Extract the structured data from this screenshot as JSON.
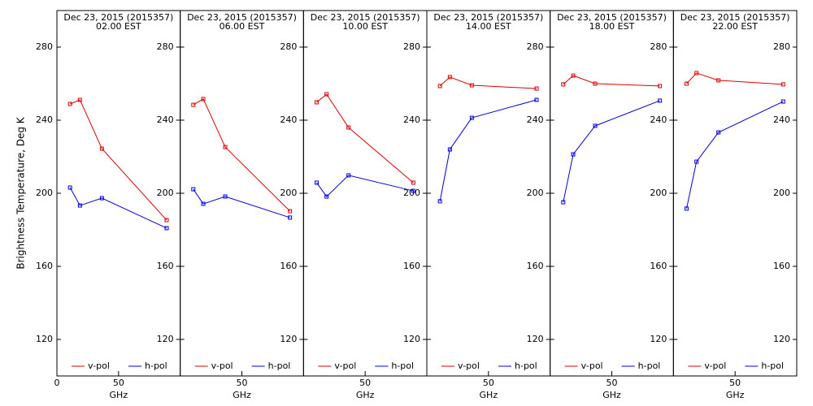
{
  "chart_data": [
    {
      "type": "line",
      "title": "Dec 23, 2015 (2015357)",
      "subtitle": "02.00 EST",
      "ylabel": "Brightness Temperature, Deg K",
      "xlabel": "GHz",
      "x": [
        10.65,
        18.7,
        36.5,
        89.0
      ],
      "series": [
        {
          "name": "v-pol",
          "color": "#e00000",
          "values": [
            248.9,
            251.1,
            224.4,
            185.3
          ]
        },
        {
          "name": "h-pol",
          "color": "#0000e0",
          "values": [
            203.1,
            193.3,
            197.3,
            180.9
          ]
        }
      ],
      "xlim": [
        0,
        100
      ],
      "xticks": [
        0,
        50
      ],
      "ylim": [
        100,
        300
      ],
      "yticks": [
        120,
        160,
        200,
        240,
        280
      ],
      "legend": "bottom"
    },
    {
      "type": "line",
      "title": "Dec 23, 2015 (2015357)",
      "subtitle": "06.00 EST",
      "xlabel": "GHz",
      "x": [
        10.65,
        18.7,
        36.5,
        89.0
      ],
      "series": [
        {
          "name": "v-pol",
          "color": "#e00000",
          "values": [
            248.4,
            251.6,
            225.3,
            190.2
          ]
        },
        {
          "name": "h-pol",
          "color": "#0000e0",
          "values": [
            202.2,
            194.2,
            198.2,
            186.7
          ]
        }
      ],
      "xlim": [
        0,
        100
      ],
      "xticks": [
        50
      ],
      "ylim": [
        100,
        300
      ],
      "yticks": [
        120,
        160,
        200,
        240,
        280
      ],
      "legend": "bottom"
    },
    {
      "type": "line",
      "title": "Dec 23, 2015 (2015357)",
      "subtitle": "10.00 EST",
      "xlabel": "GHz",
      "x": [
        10.65,
        18.7,
        36.5,
        89.0
      ],
      "series": [
        {
          "name": "v-pol",
          "color": "#e00000",
          "values": [
            249.8,
            254.2,
            236.0,
            205.8
          ]
        },
        {
          "name": "h-pol",
          "color": "#0000e0",
          "values": [
            205.8,
            198.2,
            209.8,
            201.3
          ]
        }
      ],
      "xlim": [
        0,
        100
      ],
      "xticks": [
        50
      ],
      "ylim": [
        100,
        300
      ],
      "yticks": [
        120,
        160,
        200,
        240,
        280
      ],
      "legend": "bottom"
    },
    {
      "type": "line",
      "title": "Dec 23, 2015 (2015357)",
      "subtitle": "14.00 EST",
      "xlabel": "GHz",
      "x": [
        10.65,
        18.7,
        36.5,
        89.0
      ],
      "series": [
        {
          "name": "v-pol",
          "color": "#e00000",
          "values": [
            258.7,
            263.6,
            259.1,
            257.3
          ]
        },
        {
          "name": "h-pol",
          "color": "#0000e0",
          "values": [
            195.6,
            224.0,
            241.3,
            251.1
          ]
        }
      ],
      "xlim": [
        0,
        100
      ],
      "xticks": [
        50
      ],
      "ylim": [
        100,
        300
      ],
      "yticks": [
        120,
        160,
        200,
        240,
        280
      ],
      "legend": "bottom"
    },
    {
      "type": "line",
      "title": "Dec 23, 2015 (2015357)",
      "subtitle": "18.00 EST",
      "xlabel": "GHz",
      "x": [
        10.65,
        18.7,
        36.5,
        89.0
      ],
      "series": [
        {
          "name": "v-pol",
          "color": "#e00000",
          "values": [
            259.6,
            264.4,
            260.0,
            258.7
          ]
        },
        {
          "name": "h-pol",
          "color": "#0000e0",
          "values": [
            195.1,
            221.3,
            236.9,
            250.7
          ]
        }
      ],
      "xlim": [
        0,
        100
      ],
      "xticks": [
        50
      ],
      "ylim": [
        100,
        300
      ],
      "yticks": [
        120,
        160,
        200,
        240,
        280
      ],
      "legend": "bottom"
    },
    {
      "type": "line",
      "title": "Dec 23, 2015 (2015357)",
      "subtitle": "22.00 EST",
      "xlabel": "GHz",
      "x": [
        10.65,
        18.7,
        36.5,
        89.0
      ],
      "series": [
        {
          "name": "v-pol",
          "color": "#e00000",
          "values": [
            260.0,
            265.8,
            261.8,
            259.6
          ]
        },
        {
          "name": "h-pol",
          "color": "#0000e0",
          "values": [
            191.6,
            217.3,
            233.3,
            250.2
          ]
        }
      ],
      "xlim": [
        0,
        100
      ],
      "xticks": [
        50
      ],
      "ylim": [
        100,
        300
      ],
      "yticks": [
        120,
        160,
        200,
        240,
        280
      ],
      "legend": "bottom"
    }
  ]
}
